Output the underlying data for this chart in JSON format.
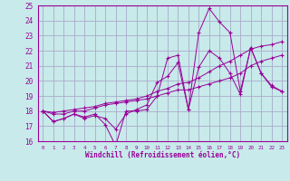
{
  "background_color": "#c8eaea",
  "grid_color": "#aaaacc",
  "line_color": "#990099",
  "xlabel": "Windchill (Refroidissement éolien,°C)",
  "xlabel_color": "#990099",
  "xlim": [
    -0.5,
    23.5
  ],
  "ylim": [
    16,
    25
  ],
  "xticks": [
    0,
    1,
    2,
    3,
    4,
    5,
    6,
    7,
    8,
    9,
    10,
    11,
    12,
    13,
    14,
    15,
    16,
    17,
    18,
    19,
    20,
    21,
    22,
    23
  ],
  "yticks": [
    16,
    17,
    18,
    19,
    20,
    21,
    22,
    23,
    24,
    25
  ],
  "series": [
    [
      18.0,
      17.3,
      17.5,
      17.8,
      17.6,
      17.8,
      17.1,
      15.7,
      18.0,
      18.0,
      18.1,
      19.0,
      21.5,
      21.7,
      18.1,
      23.2,
      24.8,
      23.9,
      23.2,
      19.3,
      22.2,
      20.5,
      19.6,
      19.3
    ],
    [
      18.0,
      17.3,
      17.5,
      17.8,
      17.5,
      17.7,
      17.5,
      16.8,
      17.8,
      18.1,
      18.4,
      19.9,
      20.3,
      21.2,
      18.1,
      20.9,
      22.0,
      21.5,
      20.5,
      19.1,
      22.2,
      20.5,
      19.7,
      19.3
    ],
    [
      18.0,
      17.8,
      17.8,
      18.0,
      18.0,
      18.2,
      18.4,
      18.5,
      18.6,
      18.7,
      18.8,
      19.0,
      19.2,
      19.4,
      19.4,
      19.6,
      19.8,
      20.0,
      20.2,
      20.5,
      21.0,
      21.3,
      21.5,
      21.7
    ],
    [
      18.0,
      17.9,
      18.0,
      18.1,
      18.2,
      18.3,
      18.5,
      18.6,
      18.7,
      18.8,
      19.0,
      19.3,
      19.5,
      19.8,
      19.9,
      20.2,
      20.6,
      21.0,
      21.3,
      21.7,
      22.1,
      22.3,
      22.4,
      22.6
    ]
  ]
}
